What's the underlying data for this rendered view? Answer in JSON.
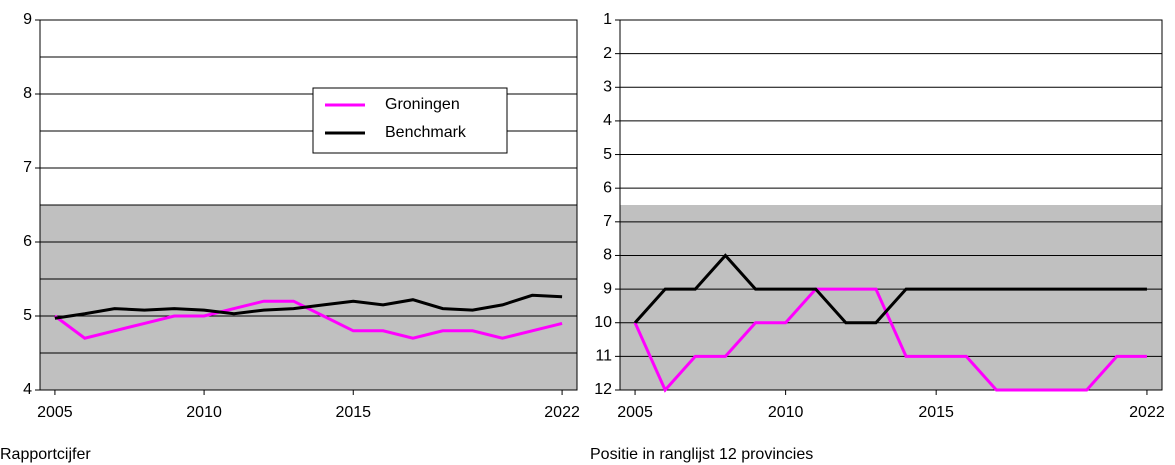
{
  "chart_data": [
    {
      "type": "line",
      "xlabel": "Rapportcijfer",
      "x": [
        2005,
        2006,
        2007,
        2008,
        2009,
        2010,
        2011,
        2012,
        2013,
        2014,
        2015,
        2016,
        2017,
        2018,
        2019,
        2020,
        2021,
        2022
      ],
      "series": [
        {
          "name": "Groningen",
          "color": "#ff00ff",
          "values": [
            5.0,
            4.7,
            4.8,
            4.9,
            5.0,
            5.0,
            5.1,
            5.2,
            5.2,
            5.0,
            4.8,
            4.8,
            4.7,
            4.8,
            4.8,
            4.7,
            4.8,
            4.9
          ]
        },
        {
          "name": "Benchmark",
          "color": "#000000",
          "values": [
            4.97,
            5.03,
            5.1,
            5.08,
            5.1,
            5.08,
            5.03,
            5.08,
            5.1,
            5.15,
            5.2,
            5.15,
            5.22,
            5.1,
            5.08,
            5.15,
            5.28,
            5.26
          ]
        }
      ],
      "xlim": [
        2004.5,
        2022.5
      ],
      "xticks": [
        2005,
        2010,
        2015,
        2022
      ],
      "ylim": [
        4,
        9
      ],
      "yticks": [
        4,
        5,
        6,
        7,
        8,
        9
      ],
      "grid_lines": [
        4.5,
        5,
        5.5,
        6,
        6.5,
        7,
        7.5,
        8,
        8.5
      ],
      "shaded_below": 6.5,
      "legend": "upper center"
    },
    {
      "type": "line",
      "xlabel": "Positie in ranglijst 12 provincies",
      "x": [
        2005,
        2006,
        2007,
        2008,
        2009,
        2010,
        2011,
        2012,
        2013,
        2014,
        2015,
        2016,
        2017,
        2018,
        2019,
        2020,
        2021,
        2022
      ],
      "series": [
        {
          "name": "Groningen",
          "color": "#ff00ff",
          "values": [
            10,
            12,
            11,
            11,
            10,
            10,
            9,
            9,
            9,
            11,
            11,
            11,
            12,
            12,
            12,
            12,
            11,
            11
          ]
        },
        {
          "name": "Benchmark",
          "color": "#000000",
          "values": [
            10,
            9,
            9,
            8,
            9,
            9,
            9,
            10,
            10,
            9,
            9,
            9,
            9,
            9,
            9,
            9,
            9,
            9
          ]
        }
      ],
      "xlim": [
        2004.5,
        2022.5
      ],
      "xticks": [
        2005,
        2010,
        2015,
        2022
      ],
      "ylim": [
        1,
        12
      ],
      "yticks": [
        1,
        2,
        3,
        4,
        5,
        6,
        7,
        8,
        9,
        10,
        11,
        12
      ],
      "y_inverted": true,
      "grid_lines": [
        2,
        3,
        4,
        5,
        6,
        7,
        8,
        9,
        10,
        11
      ],
      "shaded_below": 6.5
    }
  ]
}
